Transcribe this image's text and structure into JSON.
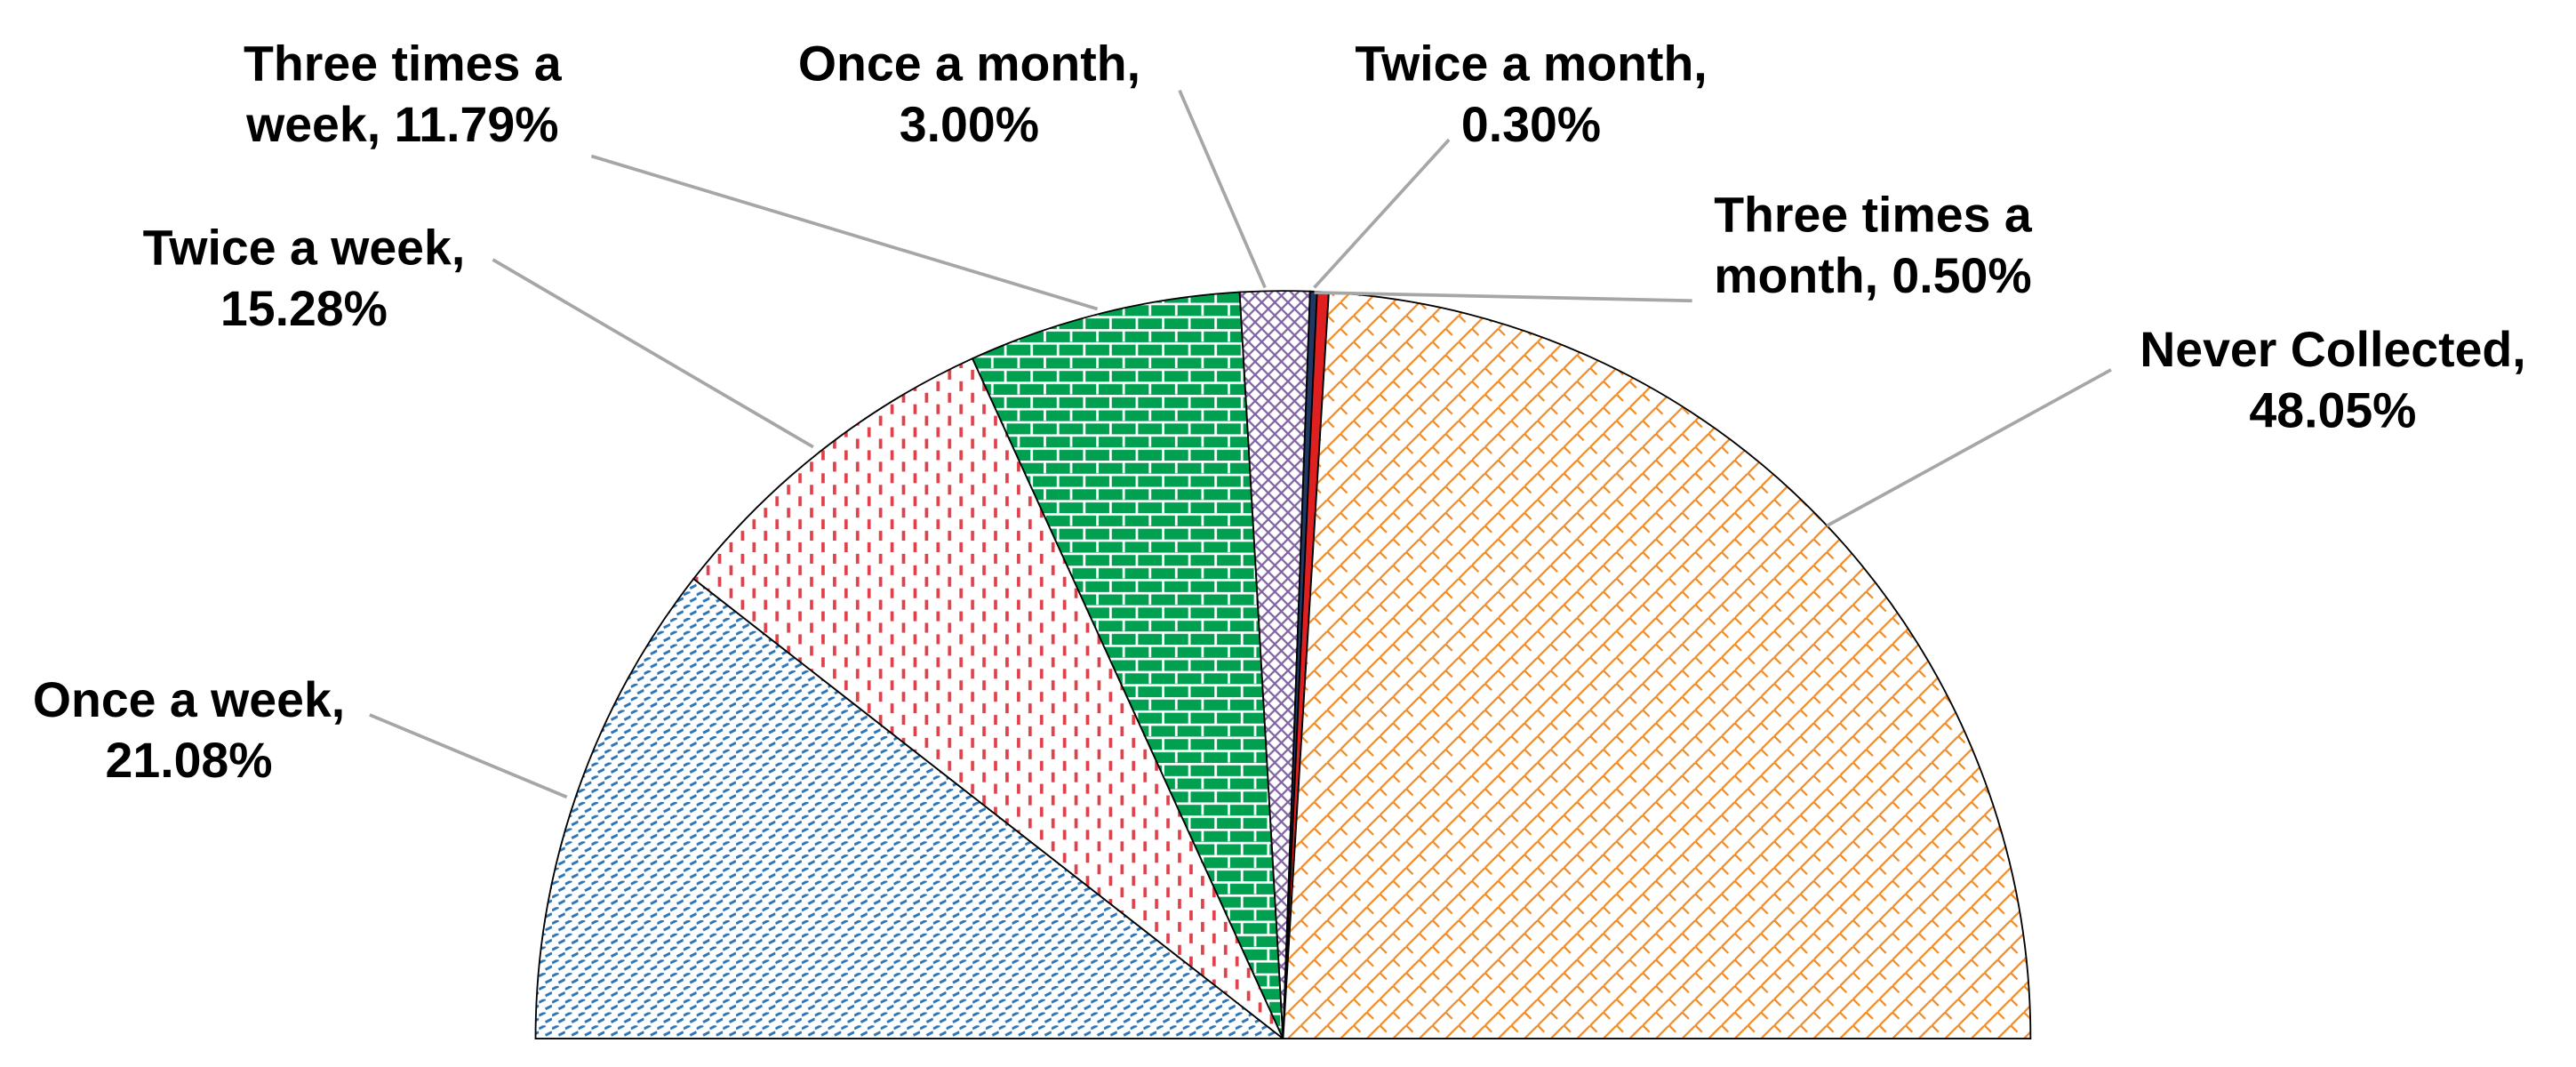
{
  "chart_data": {
    "type": "half-pie",
    "values": [
      21.08,
      15.28,
      11.79,
      3.0,
      0.3,
      0.5,
      48.05
    ],
    "value_labels": [
      "Once a week, 21.08%",
      "Twice a week, 15.28%",
      "Three times a week, 11.79%",
      "Once a month, 3.00%",
      "Twice a month, 0.30%",
      "Three times a month, 0.50%",
      "Never Collected, 48.05%"
    ],
    "colors": [
      "#2e75b6",
      "#e0404a",
      "#00a050",
      "#8064a2",
      "#1f3864",
      "#e02020",
      "#f08a24"
    ]
  }
}
